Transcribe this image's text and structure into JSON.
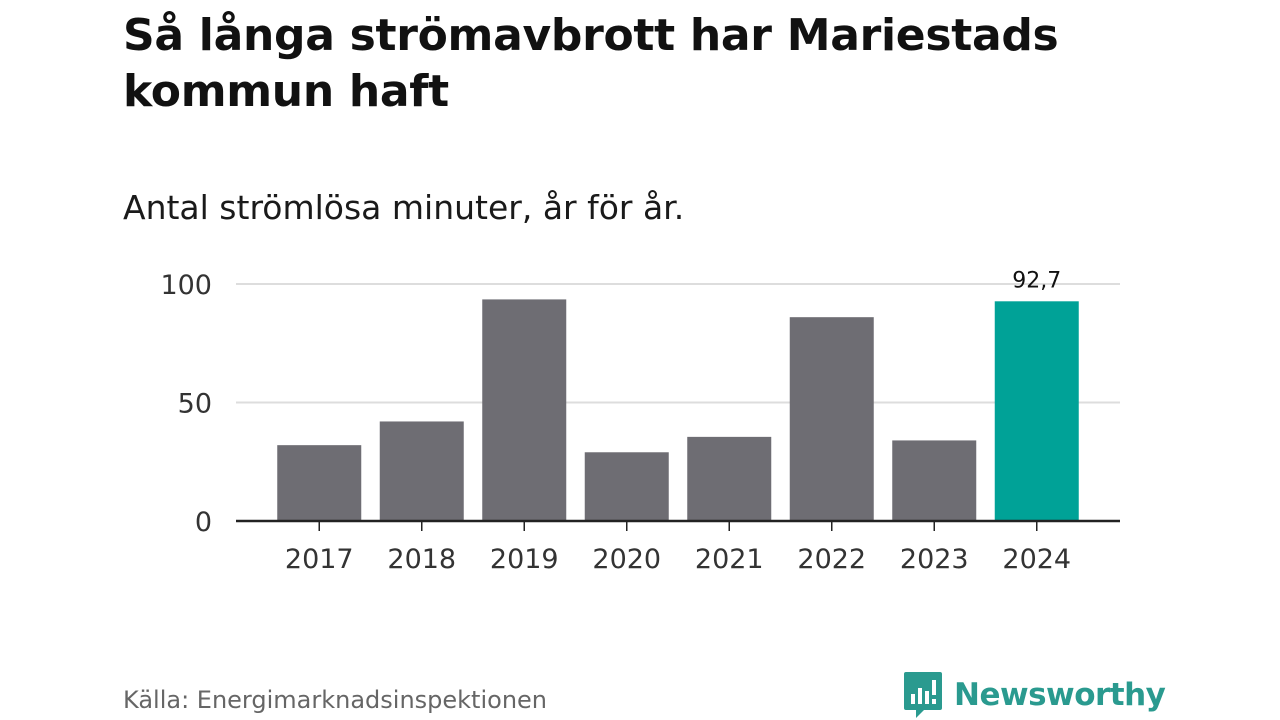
{
  "title": "Så långa strömavbrott har Mariestads kommun haft",
  "subtitle": "Antal strömlösa minuter, år för år.",
  "source": "Källa: Energimarknadsinspektionen",
  "brand": {
    "name": "Newsworthy",
    "icon": "newsworthy-logo-icon",
    "color": "#2a9a8f"
  },
  "colors": {
    "bar": "#6e6d73",
    "highlight": "#00a297",
    "grid": "#dddddd",
    "axis": "#222222"
  },
  "chart_data": {
    "type": "bar",
    "title": "Så långa strömavbrott har Mariestads kommun haft",
    "subtitle": "Antal strömlösa minuter, år för år.",
    "xlabel": "",
    "ylabel": "",
    "categories": [
      "2017",
      "2018",
      "2019",
      "2020",
      "2021",
      "2022",
      "2023",
      "2024"
    ],
    "values": [
      32,
      42,
      93.5,
      29,
      35.5,
      86,
      34,
      92.7
    ],
    "highlight_index": 7,
    "data_labels": [
      {
        "index": 7,
        "text": "92,7"
      }
    ],
    "ylim": [
      0,
      100
    ],
    "yticks": [
      0,
      50,
      100
    ],
    "grid": true,
    "legend": "none"
  }
}
